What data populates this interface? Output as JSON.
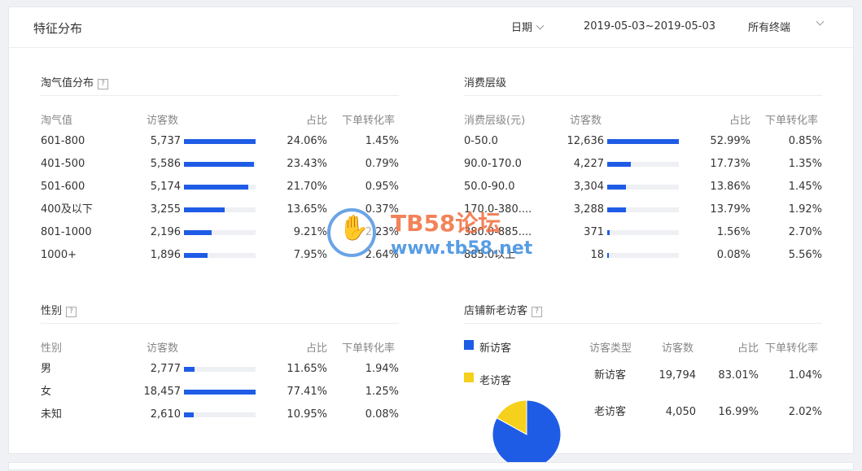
{
  "header": {
    "title": "特征分布",
    "date_label": "日期",
    "date_range": "2019-05-03~2019-05-03",
    "terminal": "所有终端"
  },
  "taoqi": {
    "title": "淘气值分布",
    "help": "?",
    "headers": [
      "淘气值",
      "访客数",
      "占比",
      "下单转化率"
    ],
    "rows": [
      {
        "label": "601-800",
        "visitors": "5,737",
        "share": "24.06%",
        "conv": "1.45%",
        "ratio": 1.0
      },
      {
        "label": "401-500",
        "visitors": "5,586",
        "share": "23.43%",
        "conv": "0.79%",
        "ratio": 0.974
      },
      {
        "label": "501-600",
        "visitors": "5,174",
        "share": "21.70%",
        "conv": "0.95%",
        "ratio": 0.902
      },
      {
        "label": "400及以下",
        "visitors": "3,255",
        "share": "13.65%",
        "conv": "0.37%",
        "ratio": 0.567
      },
      {
        "label": "801-1000",
        "visitors": "2,196",
        "share": "9.21%",
        "conv": "2.23%",
        "ratio": 0.383
      },
      {
        "label": "1000+",
        "visitors": "1,896",
        "share": "7.95%",
        "conv": "2.64%",
        "ratio": 0.33
      }
    ]
  },
  "consume": {
    "title": "消费层级",
    "headers": [
      "消费层级(元)",
      "访客数",
      "占比",
      "下单转化率"
    ],
    "rows": [
      {
        "label": "0-50.0",
        "visitors": "12,636",
        "share": "52.99%",
        "conv": "0.85%",
        "ratio": 1.0
      },
      {
        "label": "90.0-170.0",
        "visitors": "4,227",
        "share": "17.73%",
        "conv": "1.35%",
        "ratio": 0.335
      },
      {
        "label": "50.0-90.0",
        "visitors": "3,304",
        "share": "13.86%",
        "conv": "1.45%",
        "ratio": 0.261
      },
      {
        "label": "170.0-380....",
        "visitors": "3,288",
        "share": "13.79%",
        "conv": "1.92%",
        "ratio": 0.26
      },
      {
        "label": "380.0-885....",
        "visitors": "371",
        "share": "1.56%",
        "conv": "2.70%",
        "ratio": 0.029
      },
      {
        "label": "885.0以上",
        "visitors": "18",
        "share": "0.08%",
        "conv": "5.56%",
        "ratio": 0.0015
      }
    ]
  },
  "gender": {
    "title": "性别",
    "help": "?",
    "headers": [
      "性别",
      "访客数",
      "占比",
      "下单转化率"
    ],
    "rows": [
      {
        "label": "男",
        "visitors": "2,777",
        "share": "11.65%",
        "conv": "1.94%",
        "ratio": 0.15
      },
      {
        "label": "女",
        "visitors": "18,457",
        "share": "77.41%",
        "conv": "1.25%",
        "ratio": 1.0
      },
      {
        "label": "未知",
        "visitors": "2,610",
        "share": "10.95%",
        "conv": "0.08%",
        "ratio": 0.141
      }
    ]
  },
  "newold": {
    "title": "店铺新老访客",
    "help": "?",
    "legend": [
      {
        "label": "新访客",
        "color": "#1f5ce6"
      },
      {
        "label": "老访客",
        "color": "#f5d01c"
      }
    ],
    "headers": [
      "访客类型",
      "访客数",
      "占比",
      "下单转化率"
    ],
    "rows": [
      {
        "label": "新访客",
        "visitors": "19,794",
        "share": "83.01%",
        "conv": "1.04%"
      },
      {
        "label": "老访客",
        "visitors": "4,050",
        "share": "16.99%",
        "conv": "2.02%"
      }
    ]
  },
  "pie": {
    "slices": [
      {
        "name": "新访客",
        "value": 83.01,
        "color": "#1f5ce6"
      },
      {
        "name": "老访客",
        "value": 16.99,
        "color": "#f5d01c"
      }
    ]
  },
  "watermark": {
    "line1": "TB58论坛",
    "line2": "www.tb58.net"
  },
  "colors": {
    "bar": "#1f5ce6",
    "track": "#eef0f4"
  }
}
